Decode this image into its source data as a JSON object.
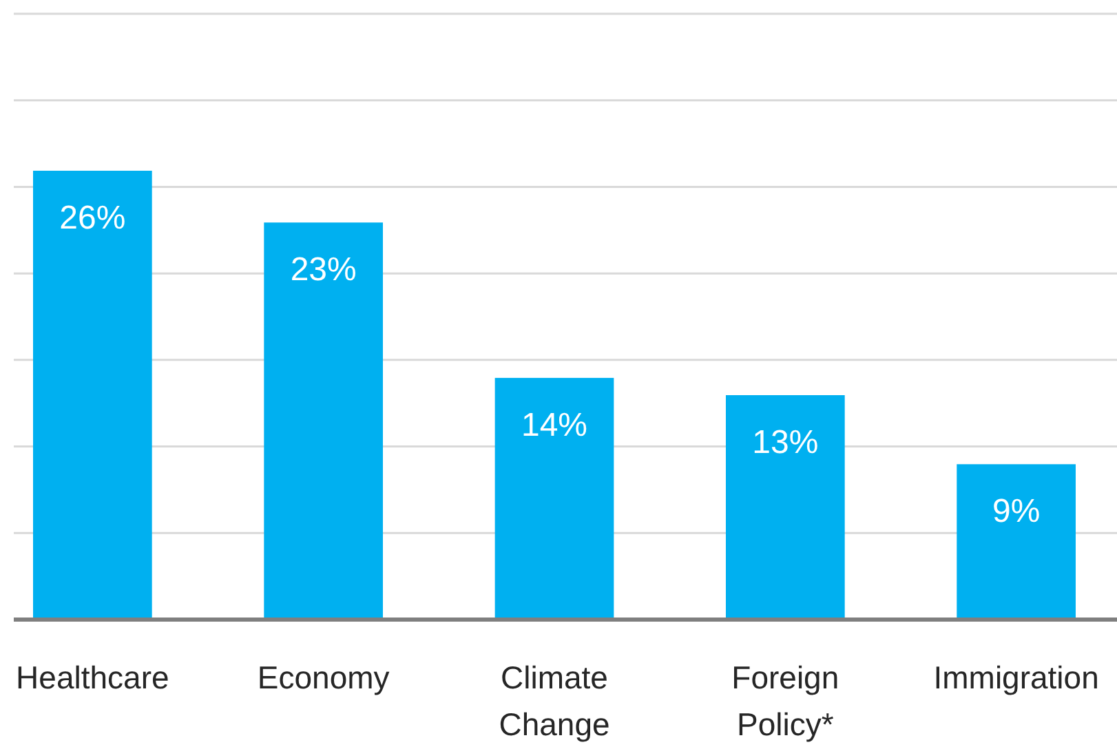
{
  "chart_data": {
    "type": "bar",
    "categories": [
      "Healthcare",
      "Economy",
      "Climate Change",
      "Foreign Policy*",
      "Immigration"
    ],
    "values": [
      26,
      23,
      14,
      13,
      9
    ],
    "value_labels": [
      "26%",
      "23%",
      "14%",
      "13%",
      "9%"
    ],
    "color": "#00b0f0",
    "tick_labels": "x",
    "grid": "y"
  }
}
